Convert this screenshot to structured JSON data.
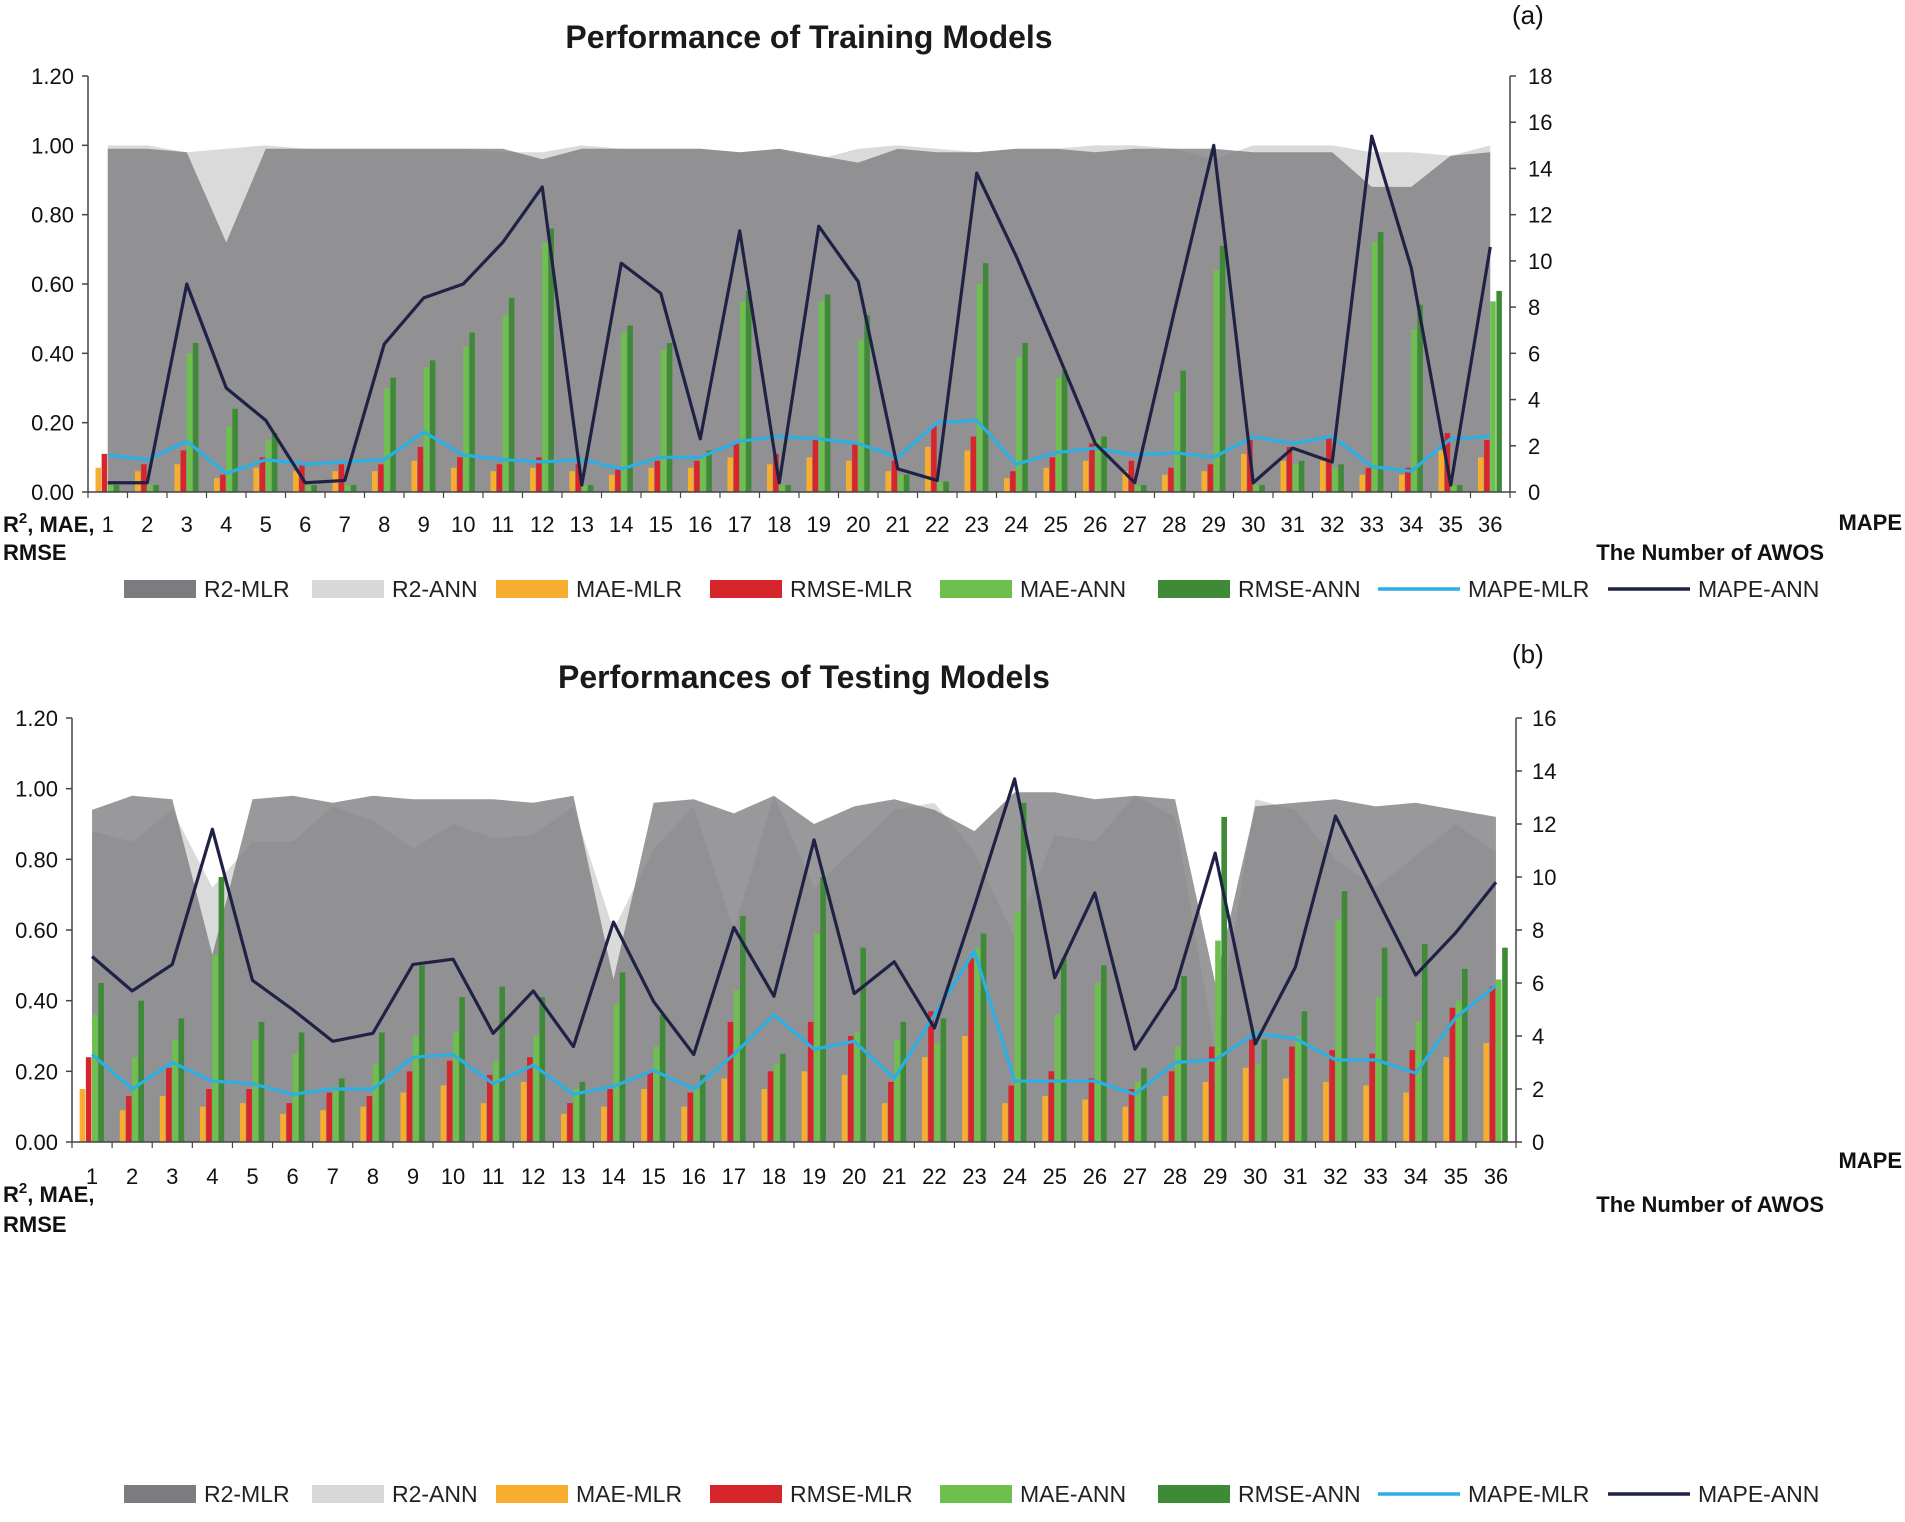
{
  "chart_data": [
    {
      "type": "bar",
      "panel_label": "(a)",
      "title": "Performance of Training Models",
      "xlabel": "The Number of AWOS",
      "ylabel_left": [
        "R",
        "2",
        ", MAE,",
        "RMSE"
      ],
      "ylabel_right": "MAPE",
      "ylim_left": [
        0,
        1.2
      ],
      "yticks_left": [
        "0.00",
        "0.20",
        "0.40",
        "0.60",
        "0.80",
        "1.00",
        "1.20"
      ],
      "ylim_right": [
        0,
        18
      ],
      "yticks_right": [
        "0",
        "2",
        "4",
        "6",
        "8",
        "10",
        "12",
        "14",
        "16",
        "18"
      ],
      "categories": [
        "1",
        "2",
        "3",
        "4",
        "5",
        "6",
        "7",
        "8",
        "9",
        "10",
        "11",
        "12",
        "13",
        "14",
        "15",
        "16",
        "17",
        "18",
        "19",
        "20",
        "21",
        "22",
        "23",
        "24",
        "25",
        "26",
        "27",
        "28",
        "29",
        "30",
        "31",
        "32",
        "33",
        "34",
        "35",
        "36"
      ],
      "series": [
        {
          "name": "R2-MLR",
          "kind": "area",
          "axis": "left",
          "color": "#7c7c80",
          "values": [
            0.99,
            0.99,
            0.98,
            0.72,
            0.99,
            0.99,
            0.99,
            0.99,
            0.99,
            0.99,
            0.99,
            0.96,
            0.99,
            0.99,
            0.99,
            0.99,
            0.98,
            0.99,
            0.97,
            0.95,
            0.99,
            0.98,
            0.98,
            0.99,
            0.99,
            0.98,
            0.99,
            0.99,
            0.99,
            0.98,
            0.98,
            0.98,
            0.88,
            0.88,
            0.97,
            0.98
          ]
        },
        {
          "name": "R2-ANN",
          "kind": "area",
          "axis": "left",
          "color": "#d8d8d8",
          "values": [
            1.0,
            1.0,
            0.98,
            0.99,
            1.0,
            0.99,
            0.99,
            0.99,
            0.99,
            0.99,
            0.98,
            0.98,
            1.0,
            0.99,
            0.99,
            0.99,
            0.98,
            0.99,
            0.96,
            0.99,
            1.0,
            0.99,
            0.98,
            0.99,
            0.99,
            1.0,
            1.0,
            0.99,
            0.96,
            1.0,
            1.0,
            1.0,
            0.98,
            0.98,
            0.97,
            1.0
          ]
        },
        {
          "name": "MAE-MLR",
          "kind": "bar",
          "axis": "left",
          "color": "#f7ae2f",
          "values": [
            0.07,
            0.06,
            0.08,
            0.04,
            0.07,
            0.06,
            0.06,
            0.06,
            0.09,
            0.07,
            0.06,
            0.07,
            0.06,
            0.05,
            0.07,
            0.07,
            0.1,
            0.08,
            0.1,
            0.09,
            0.06,
            0.13,
            0.12,
            0.04,
            0.07,
            0.09,
            0.06,
            0.05,
            0.06,
            0.11,
            0.09,
            0.09,
            0.05,
            0.05,
            0.12,
            0.1
          ]
        },
        {
          "name": "RMSE-MLR",
          "kind": "bar",
          "axis": "left",
          "color": "#d7262b",
          "values": [
            0.11,
            0.08,
            0.12,
            0.05,
            0.1,
            0.08,
            0.08,
            0.08,
            0.13,
            0.1,
            0.08,
            0.1,
            0.08,
            0.07,
            0.09,
            0.09,
            0.14,
            0.11,
            0.15,
            0.14,
            0.09,
            0.19,
            0.16,
            0.06,
            0.1,
            0.14,
            0.09,
            0.07,
            0.08,
            0.15,
            0.13,
            0.16,
            0.07,
            0.07,
            0.17,
            0.15
          ]
        },
        {
          "name": "MAE-ANN",
          "kind": "bar",
          "axis": "left",
          "color": "#6dbf4e",
          "values": [
            0.02,
            0.02,
            0.4,
            0.19,
            0.15,
            0.02,
            0.02,
            0.3,
            0.36,
            0.42,
            0.51,
            0.72,
            0.02,
            0.46,
            0.41,
            0.1,
            0.55,
            0.02,
            0.55,
            0.44,
            0.05,
            0.03,
            0.6,
            0.39,
            0.33,
            0.15,
            0.02,
            0.29,
            0.64,
            0.02,
            0.08,
            0.07,
            0.72,
            0.47,
            0.02,
            0.55
          ]
        },
        {
          "name": "RMSE-ANN",
          "kind": "bar",
          "axis": "left",
          "color": "#3f8a36",
          "values": [
            0.02,
            0.02,
            0.43,
            0.24,
            0.17,
            0.02,
            0.02,
            0.33,
            0.38,
            0.46,
            0.56,
            0.76,
            0.02,
            0.48,
            0.43,
            0.12,
            0.58,
            0.02,
            0.57,
            0.51,
            0.05,
            0.03,
            0.66,
            0.43,
            0.35,
            0.16,
            0.02,
            0.35,
            0.71,
            0.02,
            0.09,
            0.08,
            0.75,
            0.54,
            0.02,
            0.58
          ]
        },
        {
          "name": "MAPE-MLR",
          "kind": "line",
          "axis": "right",
          "color": "#2ab0e4",
          "values": [
            1.6,
            1.4,
            2.2,
            0.8,
            1.4,
            1.2,
            1.3,
            1.4,
            2.6,
            1.6,
            1.4,
            1.3,
            1.4,
            1.0,
            1.5,
            1.5,
            2.2,
            2.4,
            2.3,
            2.1,
            1.5,
            3.0,
            3.1,
            1.2,
            1.7,
            1.9,
            1.6,
            1.7,
            1.5,
            2.4,
            2.1,
            2.4,
            1.1,
            0.9,
            2.3,
            2.4
          ]
        },
        {
          "name": "MAPE-ANN",
          "kind": "line",
          "axis": "right",
          "color": "#1f2245",
          "values": [
            0.4,
            0.4,
            9.0,
            4.5,
            3.1,
            0.4,
            0.5,
            6.4,
            8.4,
            9.0,
            10.8,
            13.2,
            0.3,
            9.9,
            8.6,
            2.3,
            11.3,
            0.4,
            11.5,
            9.1,
            1.0,
            0.5,
            13.8,
            10.2,
            6.2,
            2.1,
            0.4,
            7.8,
            15.0,
            0.4,
            1.9,
            1.3,
            15.4,
            9.7,
            0.3,
            10.6
          ]
        }
      ]
    },
    {
      "type": "bar",
      "panel_label": "(b)",
      "title": "Performances of Testing Models",
      "xlabel": "The Number of AWOS",
      "ylabel_left": [
        "R",
        "2",
        ", MAE,",
        "RMSE"
      ],
      "ylabel_right": "MAPE",
      "ylim_left": [
        0,
        1.2
      ],
      "yticks_left": [
        "0.00",
        "0.20",
        "0.40",
        "0.60",
        "0.80",
        "1.00",
        "1.20"
      ],
      "ylim_right": [
        0,
        16
      ],
      "yticks_right": [
        "0",
        "2",
        "4",
        "6",
        "8",
        "10",
        "12",
        "14",
        "16"
      ],
      "categories": [
        "1",
        "2",
        "3",
        "4",
        "5",
        "6",
        "7",
        "8",
        "9",
        "10",
        "11",
        "12",
        "13",
        "14",
        "15",
        "16",
        "17",
        "18",
        "19",
        "20",
        "21",
        "22",
        "23",
        "24",
        "25",
        "26",
        "27",
        "28",
        "29",
        "30",
        "31",
        "32",
        "33",
        "34",
        "35",
        "36"
      ],
      "series": [
        {
          "name": "R2-MLR",
          "kind": "area",
          "axis": "left",
          "color": "#7c7c80",
          "values": [
            0.94,
            0.98,
            0.97,
            0.53,
            0.97,
            0.98,
            0.96,
            0.98,
            0.97,
            0.97,
            0.97,
            0.96,
            0.98,
            0.46,
            0.96,
            0.97,
            0.93,
            0.98,
            0.9,
            0.95,
            0.97,
            0.94,
            0.88,
            0.99,
            0.99,
            0.97,
            0.98,
            0.97,
            0.45,
            0.95,
            0.96,
            0.97,
            0.95,
            0.96,
            0.94,
            0.92
          ]
        },
        {
          "name": "R2-ANN",
          "kind": "area",
          "axis": "left",
          "color": "#d8d8d8",
          "values": [
            0.88,
            0.85,
            0.94,
            0.72,
            0.85,
            0.85,
            0.95,
            0.91,
            0.83,
            0.9,
            0.86,
            0.87,
            0.95,
            0.6,
            0.83,
            0.95,
            0.6,
            0.98,
            0.72,
            0.83,
            0.94,
            0.96,
            0.82,
            0.58,
            0.87,
            0.85,
            0.98,
            0.92,
            0.26,
            0.97,
            0.94,
            0.8,
            0.72,
            0.81,
            0.9,
            0.82
          ]
        },
        {
          "name": "MAE-MLR",
          "kind": "bar",
          "axis": "left",
          "color": "#f7ae2f",
          "values": [
            0.15,
            0.09,
            0.13,
            0.1,
            0.11,
            0.08,
            0.09,
            0.1,
            0.14,
            0.16,
            0.11,
            0.17,
            0.08,
            0.1,
            0.15,
            0.1,
            0.18,
            0.15,
            0.2,
            0.19,
            0.11,
            0.24,
            0.3,
            0.11,
            0.13,
            0.12,
            0.1,
            0.13,
            0.17,
            0.21,
            0.18,
            0.17,
            0.16,
            0.14,
            0.24,
            0.28
          ]
        },
        {
          "name": "RMSE-MLR",
          "kind": "bar",
          "axis": "left",
          "color": "#d7262b",
          "values": [
            0.24,
            0.13,
            0.21,
            0.15,
            0.15,
            0.11,
            0.14,
            0.13,
            0.2,
            0.23,
            0.19,
            0.24,
            0.11,
            0.15,
            0.2,
            0.14,
            0.34,
            0.2,
            0.34,
            0.3,
            0.17,
            0.37,
            0.52,
            0.16,
            0.2,
            0.18,
            0.15,
            0.2,
            0.27,
            0.29,
            0.27,
            0.26,
            0.25,
            0.26,
            0.38,
            0.44
          ]
        },
        {
          "name": "MAE-ANN",
          "kind": "bar",
          "axis": "left",
          "color": "#6dbf4e",
          "values": [
            0.36,
            0.24,
            0.29,
            0.53,
            0.29,
            0.25,
            0.15,
            0.22,
            0.3,
            0.31,
            0.23,
            0.3,
            0.15,
            0.39,
            0.27,
            0.15,
            0.43,
            0.22,
            0.59,
            0.31,
            0.29,
            0.28,
            0.55,
            0.65,
            0.36,
            0.45,
            0.17,
            0.27,
            0.57,
            0.22,
            0.3,
            0.63,
            0.41,
            0.34,
            0.4,
            0.46
          ]
        },
        {
          "name": "RMSE-ANN",
          "kind": "bar",
          "axis": "left",
          "color": "#3f8a36",
          "values": [
            0.45,
            0.4,
            0.35,
            0.75,
            0.34,
            0.31,
            0.18,
            0.31,
            0.5,
            0.41,
            0.44,
            0.41,
            0.17,
            0.48,
            0.36,
            0.19,
            0.64,
            0.25,
            0.75,
            0.55,
            0.34,
            0.35,
            0.59,
            0.96,
            0.52,
            0.5,
            0.21,
            0.47,
            0.92,
            0.29,
            0.37,
            0.71,
            0.55,
            0.56,
            0.49,
            0.55
          ]
        },
        {
          "name": "MAPE-MLR",
          "kind": "line",
          "axis": "right",
          "color": "#2ab0e4",
          "values": [
            3.3,
            2.0,
            3.0,
            2.3,
            2.2,
            1.8,
            2.0,
            2.0,
            3.2,
            3.3,
            2.2,
            2.9,
            1.8,
            2.1,
            2.7,
            2.0,
            3.3,
            4.8,
            3.5,
            3.8,
            2.4,
            4.8,
            7.2,
            2.3,
            2.3,
            2.3,
            1.8,
            3.0,
            3.1,
            4.1,
            3.9,
            3.1,
            3.1,
            2.6,
            4.7,
            5.9
          ]
        },
        {
          "name": "MAPE-ANN",
          "kind": "line",
          "axis": "right",
          "color": "#1f2245",
          "values": [
            7.0,
            5.7,
            6.7,
            11.8,
            6.1,
            5.0,
            3.8,
            4.1,
            6.7,
            6.9,
            4.1,
            5.7,
            3.6,
            8.3,
            5.3,
            3.3,
            8.1,
            5.5,
            11.4,
            5.6,
            6.8,
            4.3,
            8.9,
            13.7,
            6.2,
            9.4,
            3.5,
            5.8,
            10.9,
            3.7,
            6.6,
            12.3,
            9.3,
            6.3,
            7.9,
            9.8
          ]
        }
      ]
    }
  ]
}
